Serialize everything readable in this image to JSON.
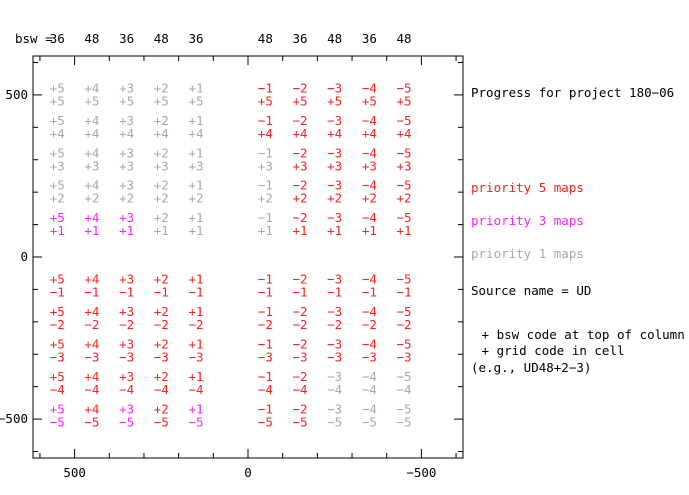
{
  "chart_data": {
    "type": "table",
    "bsw_label": "bsw =",
    "bsw_codes": [
      "36",
      "48",
      "36",
      "48",
      "36",
      "48",
      "36",
      "48",
      "36",
      "48"
    ],
    "column_codes": [
      "+5",
      "+4",
      "+3",
      "+2",
      "+1",
      "−1",
      "−2",
      "−3",
      "−4",
      "−5"
    ],
    "row_codes": [
      "+5",
      "+4",
      "+3",
      "+2",
      "+1",
      "−1",
      "−2",
      "−3",
      "−4",
      "−5"
    ],
    "column_x": [
      550,
      450,
      350,
      250,
      150,
      -50,
      -150,
      -250,
      -350,
      -450
    ],
    "row_y": [
      520,
      420,
      320,
      220,
      120,
      -70,
      -170,
      -270,
      -370,
      -470
    ],
    "priority": [
      [
        1,
        1,
        1,
        1,
        1,
        5,
        5,
        5,
        5,
        5
      ],
      [
        1,
        1,
        1,
        1,
        1,
        5,
        5,
        5,
        5,
        5
      ],
      [
        1,
        1,
        1,
        1,
        1,
        1,
        5,
        5,
        5,
        5
      ],
      [
        1,
        1,
        1,
        1,
        1,
        1,
        5,
        5,
        5,
        5
      ],
      [
        3,
        3,
        3,
        1,
        1,
        1,
        5,
        5,
        5,
        5
      ],
      [
        5,
        5,
        5,
        5,
        5,
        5,
        5,
        5,
        5,
        5
      ],
      [
        5,
        5,
        5,
        5,
        5,
        5,
        5,
        5,
        5,
        5
      ],
      [
        5,
        5,
        5,
        5,
        5,
        5,
        5,
        5,
        5,
        5
      ],
      [
        5,
        5,
        5,
        5,
        5,
        5,
        5,
        1,
        1,
        1
      ],
      [
        3,
        5,
        3,
        5,
        3,
        5,
        5,
        1,
        1,
        1
      ]
    ],
    "xlim": [
      620,
      -620
    ],
    "ylim": [
      -620,
      620
    ],
    "xticks": [
      {
        "value": 500,
        "label": "500"
      },
      {
        "value": 0,
        "label": "0"
      },
      {
        "value": -500,
        "label": "−500"
      }
    ],
    "yticks": [
      {
        "value": 500,
        "label": "500"
      },
      {
        "value": 0,
        "label": "0"
      },
      {
        "value": -500,
        "label": "−500"
      }
    ],
    "title": "Progress for project 180−06",
    "legend": [
      {
        "label": "priority 5 maps",
        "priority": 5
      },
      {
        "label": "priority 3 maps",
        "priority": 3
      },
      {
        "label": "priority 1 maps",
        "priority": 1
      }
    ],
    "notes": [
      "Source name = UD",
      " + bsw code at top of column",
      " + grid code in cell",
      "(e.g., UD48+2−3)"
    ],
    "colors": {
      "5": "#ff2020",
      "3": "#ff20ff",
      "1": "#a8a8a8"
    }
  }
}
